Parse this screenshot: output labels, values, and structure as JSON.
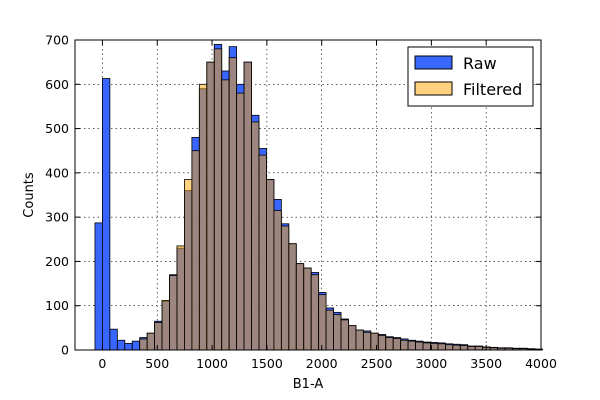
{
  "chart_data": {
    "type": "bar",
    "subtype": "overlaid-histogram",
    "title": "",
    "xlabel": "B1-A",
    "ylabel": "Counts",
    "xlim": [
      -250,
      4000
    ],
    "ylim": [
      0,
      700
    ],
    "xticks": [
      0,
      500,
      1000,
      1500,
      2000,
      2500,
      3000,
      3500,
      4000
    ],
    "yticks": [
      0,
      100,
      200,
      300,
      400,
      500,
      600,
      700
    ],
    "grid": true,
    "legend_position": "top-right",
    "bin_width": 68,
    "series": [
      {
        "name": "Raw",
        "color": "#2255ff",
        "opacity": 0.9,
        "bin_starts": [
          -68,
          0,
          68,
          136,
          204,
          272,
          340,
          408,
          476,
          544,
          612,
          680,
          748,
          816,
          884,
          952,
          1020,
          1088,
          1156,
          1224,
          1292,
          1360,
          1428,
          1496,
          1564,
          1632,
          1700,
          1768,
          1836,
          1904,
          1972,
          2040,
          2108,
          2176,
          2244,
          2312,
          2380,
          2448,
          2516,
          2584,
          2652,
          2720,
          2788,
          2856,
          2924,
          2992,
          3060,
          3128,
          3196,
          3264,
          3332,
          3400,
          3468,
          3536,
          3604,
          3672,
          3740,
          3808,
          3876,
          3944
        ],
        "values": [
          287,
          613,
          47,
          22,
          15,
          20,
          28,
          38,
          65,
          110,
          170,
          230,
          360,
          480,
          590,
          650,
          690,
          630,
          685,
          600,
          650,
          530,
          455,
          385,
          340,
          285,
          240,
          195,
          185,
          175,
          130,
          95,
          85,
          70,
          55,
          45,
          43,
          38,
          35,
          30,
          28,
          25,
          22,
          20,
          18,
          17,
          16,
          14,
          13,
          12,
          9,
          9,
          7,
          6,
          5,
          5,
          4,
          4,
          3,
          2
        ]
      },
      {
        "name": "Filtered",
        "color": "#ffa500",
        "opacity": 0.5,
        "bin_starts": [
          340,
          408,
          476,
          544,
          612,
          680,
          748,
          816,
          884,
          952,
          1020,
          1088,
          1156,
          1224,
          1292,
          1360,
          1428,
          1496,
          1564,
          1632,
          1700,
          1768,
          1836,
          1904,
          1972,
          2040,
          2108,
          2176,
          2244,
          2312,
          2380,
          2448,
          2516,
          2584,
          2652,
          2720,
          2788,
          2856,
          2924,
          2992,
          3060,
          3128,
          3196,
          3264,
          3332,
          3400,
          3468,
          3536,
          3604,
          3672,
          3740,
          3808,
          3876,
          3944
        ],
        "values": [
          25,
          38,
          62,
          112,
          168,
          235,
          385,
          450,
          600,
          650,
          680,
          610,
          660,
          580,
          650,
          515,
          440,
          385,
          315,
          280,
          240,
          195,
          185,
          170,
          125,
          90,
          80,
          68,
          55,
          45,
          40,
          38,
          33,
          28,
          26,
          22,
          20,
          18,
          16,
          15,
          14,
          12,
          11,
          10,
          8,
          8,
          6,
          5,
          4,
          4,
          3,
          3,
          2,
          2
        ]
      }
    ]
  }
}
